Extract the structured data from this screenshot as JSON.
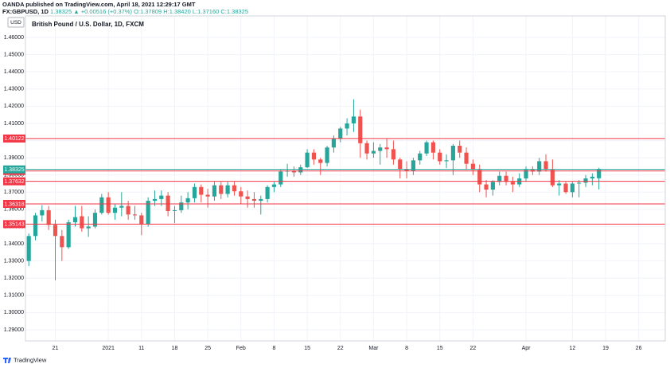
{
  "header": {
    "publisher": "OANDA published on TradingView.com, April 18, 2021 12:29:17 GMT",
    "symbol": "FX:GBPUSD, 1D",
    "price": "1.38325",
    "change": "▲ +0.00516 (+0.37%)",
    "open": "O:1.37809",
    "high": "H:1.38420",
    "low": "L:1.37160",
    "close": "C:1.38325"
  },
  "footer": {
    "brand": "TradingView"
  },
  "chart_data": {
    "type": "candlestick",
    "title": "British Pound / U.S. Dollar, 1D, FXCM",
    "currency": "USD",
    "up_color": "#26a69a",
    "down_color": "#ef5350",
    "grid": true,
    "open": [
      1.33,
      1.3445,
      1.3565,
      1.3595,
      1.351,
      1.3445,
      1.338,
      1.3525,
      1.356,
      1.349,
      1.35,
      1.358,
      1.367,
      1.358,
      1.361,
      1.362,
      1.357,
      1.3565,
      1.3515,
      1.365,
      1.366,
      1.368,
      1.359,
      1.3595,
      1.364,
      1.3665,
      1.373,
      1.3685,
      1.3675,
      1.374,
      1.369,
      1.374,
      1.3705,
      1.3675,
      1.366,
      1.365,
      1.366,
      1.373,
      1.3745,
      1.382,
      1.3825,
      1.3815,
      1.3845,
      1.393,
      1.389,
      1.387,
      1.396,
      1.401,
      1.407,
      1.41,
      1.414,
      1.3985,
      1.3925,
      1.394,
      1.396,
      1.395,
      1.389,
      1.3835,
      1.3825,
      1.3885,
      1.3925,
      1.399,
      1.393,
      1.388,
      1.3885,
      1.397,
      1.393,
      1.3865,
      1.383,
      1.3745,
      1.3715,
      1.376,
      1.3795,
      1.376,
      1.3745,
      1.378,
      1.383,
      1.382,
      1.388,
      1.383,
      1.374,
      1.375,
      1.37,
      1.375,
      1.3755,
      1.378,
      1.37809
    ],
    "high": [
      1.346,
      1.358,
      1.3625,
      1.362,
      1.354,
      1.348,
      1.354,
      1.362,
      1.362,
      1.356,
      1.36,
      1.369,
      1.37,
      1.363,
      1.37,
      1.365,
      1.362,
      1.358,
      1.367,
      1.371,
      1.371,
      1.37,
      1.362,
      1.368,
      1.37,
      1.375,
      1.3745,
      1.372,
      1.376,
      1.376,
      1.376,
      1.376,
      1.373,
      1.371,
      1.37,
      1.368,
      1.374,
      1.376,
      1.383,
      1.3865,
      1.385,
      1.386,
      1.395,
      1.395,
      1.39,
      1.397,
      1.403,
      1.408,
      1.413,
      1.424,
      1.418,
      1.4,
      1.399,
      1.398,
      1.401,
      1.4,
      1.39,
      1.388,
      1.39,
      1.394,
      1.4,
      1.4,
      1.395,
      1.392,
      1.398,
      1.4,
      1.396,
      1.389,
      1.386,
      1.377,
      1.377,
      1.382,
      1.382,
      1.379,
      1.381,
      1.385,
      1.385,
      1.39,
      1.392,
      1.389,
      1.377,
      1.376,
      1.376,
      1.377,
      1.38,
      1.381,
      1.3842
    ],
    "low": [
      1.327,
      1.342,
      1.353,
      1.348,
      1.3187,
      1.33,
      1.337,
      1.35,
      1.347,
      1.344,
      1.349,
      1.357,
      1.357,
      1.354,
      1.356,
      1.354,
      1.354,
      1.345,
      1.35,
      1.362,
      1.362,
      1.356,
      1.352,
      1.358,
      1.36,
      1.364,
      1.364,
      1.361,
      1.365,
      1.366,
      1.367,
      1.368,
      1.363,
      1.361,
      1.361,
      1.357,
      1.364,
      1.37,
      1.373,
      1.379,
      1.379,
      1.38,
      1.384,
      1.386,
      1.38,
      1.385,
      1.393,
      1.399,
      1.403,
      1.405,
      1.39,
      1.389,
      1.39,
      1.386,
      1.39,
      1.386,
      1.378,
      1.378,
      1.38,
      1.386,
      1.391,
      1.389,
      1.386,
      1.384,
      1.38,
      1.39,
      1.383,
      1.38,
      1.37,
      1.367,
      1.368,
      1.374,
      1.374,
      1.37,
      1.373,
      1.376,
      1.38,
      1.38,
      1.382,
      1.373,
      1.368,
      1.369,
      1.367,
      1.367,
      1.373,
      1.374,
      1.3716
    ],
    "close": [
      1.3445,
      1.3565,
      1.3595,
      1.351,
      1.3445,
      1.338,
      1.3525,
      1.3555,
      1.349,
      1.35,
      1.358,
      1.367,
      1.358,
      1.361,
      1.362,
      1.357,
      1.3565,
      1.3515,
      1.365,
      1.366,
      1.368,
      1.359,
      1.3595,
      1.364,
      1.3665,
      1.373,
      1.3685,
      1.3675,
      1.374,
      1.369,
      1.374,
      1.3705,
      1.3675,
      1.366,
      1.365,
      1.366,
      1.373,
      1.3745,
      1.382,
      1.3825,
      1.3815,
      1.3845,
      1.393,
      1.389,
      1.387,
      1.396,
      1.401,
      1.407,
      1.41,
      1.414,
      1.3985,
      1.3925,
      1.394,
      1.396,
      1.395,
      1.389,
      1.3835,
      1.3825,
      1.3885,
      1.3925,
      1.399,
      1.393,
      1.388,
      1.3885,
      1.397,
      1.393,
      1.3865,
      1.383,
      1.3745,
      1.3715,
      1.376,
      1.3795,
      1.376,
      1.3745,
      1.378,
      1.383,
      1.382,
      1.388,
      1.383,
      1.374,
      1.375,
      1.37,
      1.375,
      1.3755,
      1.378,
      1.379,
      1.38325
    ],
    "xlim": [
      -0.5,
      96
    ],
    "xticks": [
      {
        "value": 4,
        "label": "21"
      },
      {
        "value": 12,
        "label": "2021"
      },
      {
        "value": 17,
        "label": "11"
      },
      {
        "value": 22,
        "label": "18"
      },
      {
        "value": 27,
        "label": "25"
      },
      {
        "value": 32,
        "label": "Feb"
      },
      {
        "value": 37,
        "label": "8"
      },
      {
        "value": 42,
        "label": "15"
      },
      {
        "value": 47,
        "label": "22"
      },
      {
        "value": 52,
        "label": "Mar"
      },
      {
        "value": 57,
        "label": "8"
      },
      {
        "value": 62,
        "label": "15"
      },
      {
        "value": 67,
        "label": "22"
      },
      {
        "value": 75,
        "label": "Apr"
      },
      {
        "value": 82,
        "label": "12"
      },
      {
        "value": 87,
        "label": "19"
      },
      {
        "value": 92,
        "label": "26"
      }
    ],
    "ylim": [
      1.2835,
      1.4725
    ],
    "yticks": [
      {
        "value": 1.29,
        "label": "1.29000"
      },
      {
        "value": 1.3,
        "label": "1.30000"
      },
      {
        "value": 1.31,
        "label": "1.31000"
      },
      {
        "value": 1.32,
        "label": "1.32000"
      },
      {
        "value": 1.33,
        "label": "1.33000"
      },
      {
        "value": 1.34,
        "label": "1.34000"
      },
      {
        "value": 1.35,
        "label": "1.35000"
      },
      {
        "value": 1.36,
        "label": "1.36000"
      },
      {
        "value": 1.37,
        "label": "1.37000"
      },
      {
        "value": 1.38,
        "label": "1.38000"
      },
      {
        "value": 1.39,
        "label": "1.39000"
      },
      {
        "value": 1.4,
        "label": "1.40000"
      },
      {
        "value": 1.41,
        "label": "1.41000"
      },
      {
        "value": 1.42,
        "label": "1.42000"
      },
      {
        "value": 1.43,
        "label": "1.43000"
      },
      {
        "value": 1.44,
        "label": "1.44000"
      },
      {
        "value": 1.45,
        "label": "1.45000"
      },
      {
        "value": 1.46,
        "label": "1.46000"
      }
    ],
    "price_lines": [
      {
        "value": 1.40122,
        "color": "#f23645"
      },
      {
        "value": 1.38232,
        "color": "#f23645"
      },
      {
        "value": 1.37632,
        "color": "#f23645"
      },
      {
        "value": 1.36318,
        "color": "#f23645"
      },
      {
        "value": 1.35143,
        "color": "#f23645"
      },
      {
        "value": 1.38325,
        "color": "#26a69a"
      }
    ]
  }
}
